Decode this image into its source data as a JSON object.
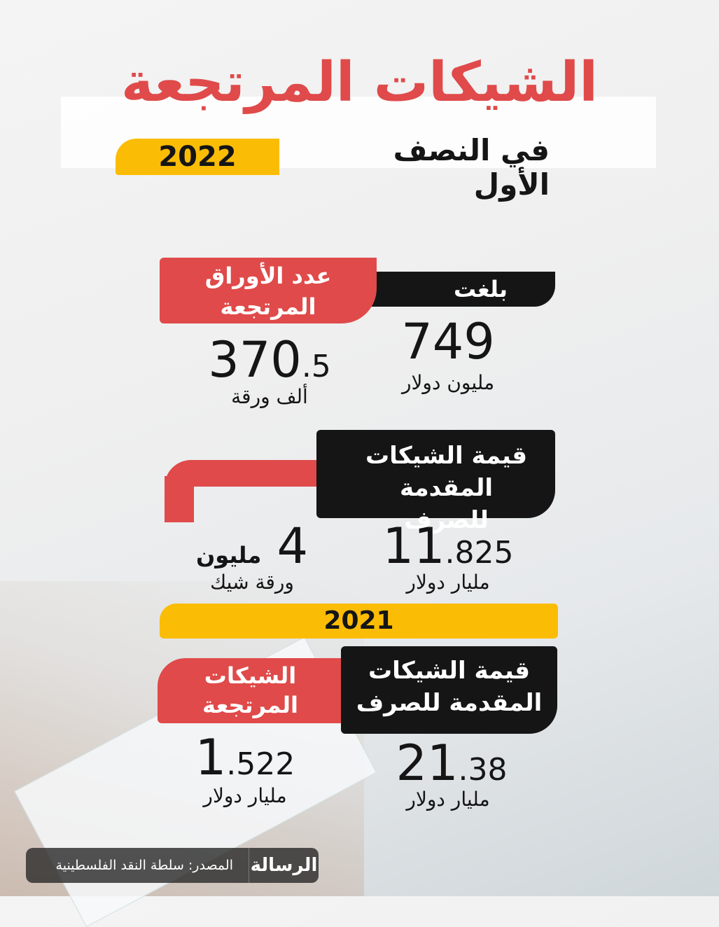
{
  "header": {
    "title": "الشيكات المرتجعة",
    "subtitle": "في النصف الأول",
    "year": "2022"
  },
  "section_2022": {
    "reached_label": "بلغت",
    "returned_sheets_label": "عدد الأوراق المرتجعة",
    "returned_value": {
      "int": "749",
      "unit": "مليون دولار"
    },
    "returned_sheets": {
      "int": "370",
      "dec": ".5",
      "unit": "ألف ورقة"
    },
    "presented_label": "قيمة الشيكات المقدمة للصرف",
    "presented_value": {
      "int": "11",
      "dec": ".825",
      "unit": "مليار دولار"
    },
    "presented_sheets": {
      "int": "4",
      "word": "مليون",
      "unit": "ورقة شيك"
    }
  },
  "section_2021": {
    "year": "2021",
    "presented_label": "قيمة الشيكات المقدمة للصرف",
    "returned_label": "الشيكات المرتجعة",
    "presented_value": {
      "int": "21",
      "dec": ".38",
      "unit": "مليار دولار"
    },
    "returned_value": {
      "int": "1",
      "dec": ".522",
      "unit": "مليار دولار"
    }
  },
  "footer": {
    "source": "المصدر: سلطة النقد الفلسطينية",
    "logo": "الرسالة"
  },
  "colors": {
    "red": "#e04a4a",
    "black": "#151515",
    "yellow": "#fbbc05"
  }
}
